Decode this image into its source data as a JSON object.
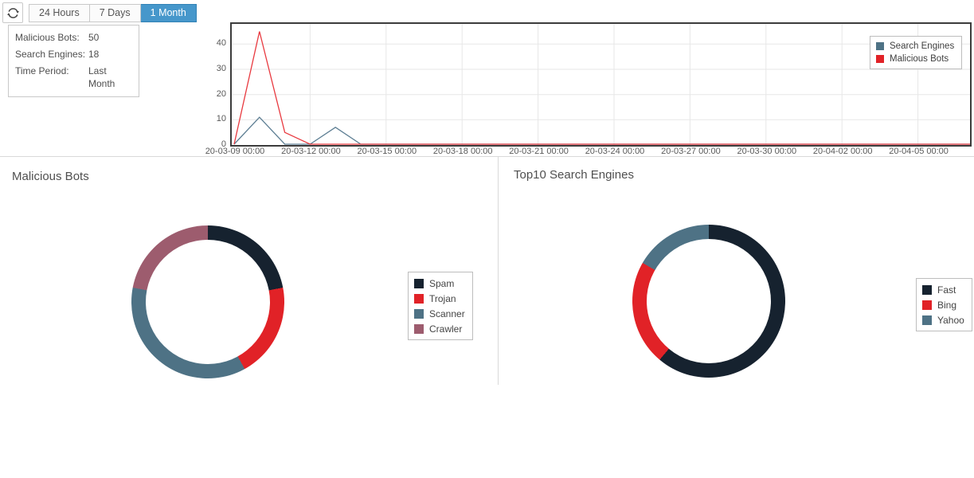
{
  "toolbar": {
    "refresh_icon": "refresh-icon",
    "buttons": [
      {
        "label": "24 Hours",
        "active": false
      },
      {
        "label": "7 Days",
        "active": false
      },
      {
        "label": "1 Month",
        "active": true
      }
    ],
    "active_color": "#4697cb"
  },
  "summary_box": {
    "rows": [
      {
        "label": "Malicious Bots:",
        "value": "50"
      },
      {
        "label": "Search Engines:",
        "value": "18"
      },
      {
        "label": "Time Period:",
        "value": "Last Month"
      }
    ]
  },
  "colors": {
    "navy": "#16222f",
    "red": "#e12227",
    "slate": "#4e7285",
    "mauve": "#9d5c6e",
    "plot_border": "#3c3c3c",
    "grid": "#e7e7e7",
    "divider": "#d9d9d9"
  },
  "chart_data": [
    {
      "type": "line",
      "title": "",
      "x_tick_labels": [
        "20-03-09 00:00",
        "20-03-12 00:00",
        "20-03-15 00:00",
        "20-03-18 00:00",
        "20-03-21 00:00",
        "20-03-24 00:00",
        "20-03-27 00:00",
        "20-03-30 00:00",
        "20-04-02 00:00",
        "20-04-05 00:00"
      ],
      "x_interval": "daily",
      "y_ticks": [
        0,
        10,
        20,
        30,
        40
      ],
      "y_max": 48,
      "grid": true,
      "legend_position": "top-right",
      "series": [
        {
          "name": "Search Engines",
          "color": "#5d7e93",
          "legend_color": "#4e7285",
          "values": [
            0,
            11,
            0,
            0,
            7,
            0,
            0,
            0,
            0,
            0,
            0,
            0,
            0,
            0,
            0,
            0,
            0,
            0,
            0,
            0,
            0,
            0,
            0,
            0,
            0,
            0,
            0,
            0
          ]
        },
        {
          "name": "Malicious Bots",
          "color": "#e8393f",
          "legend_color": "#e12227",
          "values": [
            0,
            45,
            5,
            0,
            0,
            0,
            0,
            0,
            0,
            0,
            0,
            0,
            0,
            0,
            0,
            0,
            0,
            0,
            0,
            0,
            0,
            0,
            0,
            0,
            0,
            0,
            0,
            0
          ]
        }
      ]
    },
    {
      "type": "pie",
      "title": "Malicious Bots",
      "total": 50,
      "labels": [
        "Spam",
        "Trojan",
        "Scanner",
        "Crawler"
      ],
      "values": [
        11,
        10,
        18,
        11
      ],
      "slice_colors": [
        "#16222f",
        "#e12227",
        "#4e7285",
        "#9d5c6e"
      ],
      "legend_position": "right"
    },
    {
      "type": "pie",
      "title": "Top10 Search Engines",
      "total": 18,
      "labels": [
        "Fast",
        "Bing",
        "Yahoo"
      ],
      "values": [
        11,
        4,
        3
      ],
      "slice_colors": [
        "#16222f",
        "#e12227",
        "#4e7285"
      ],
      "legend_position": "right"
    }
  ]
}
